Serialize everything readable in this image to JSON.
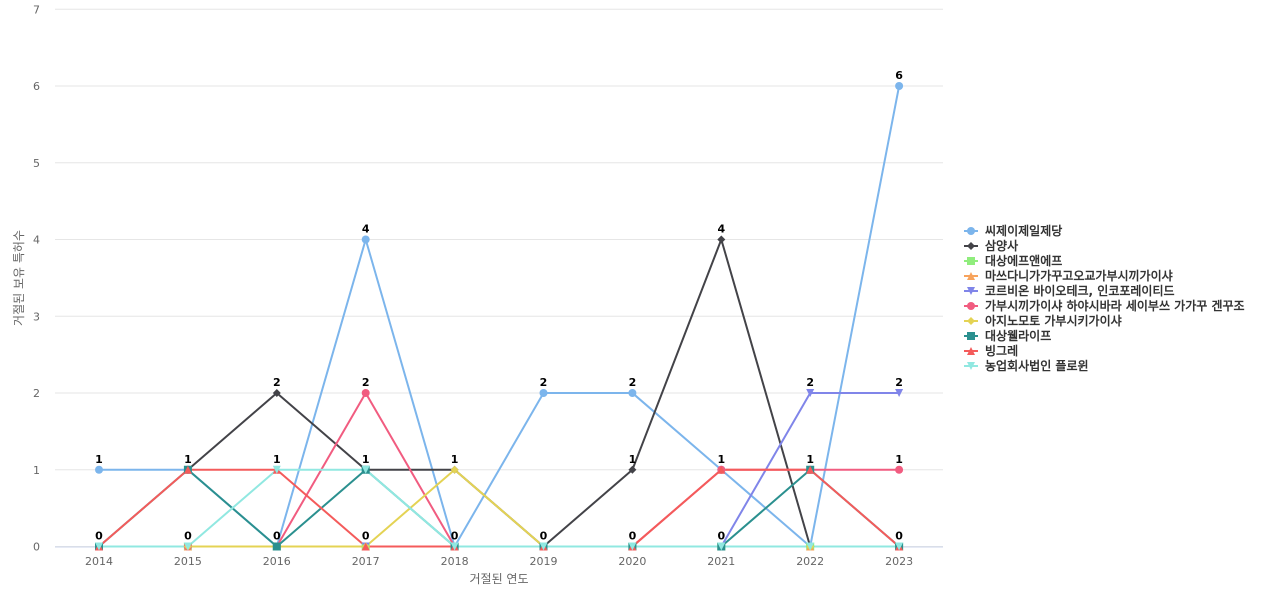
{
  "chart_data": {
    "type": "line",
    "title": "",
    "xlabel": "거절된 연도",
    "ylabel": "거절된 보유 특허수",
    "x": [
      "2014",
      "2015",
      "2016",
      "2017",
      "2018",
      "2019",
      "2020",
      "2021",
      "2022",
      "2023"
    ],
    "ylim": [
      0,
      7
    ],
    "yticks": [
      0,
      1,
      2,
      3,
      4,
      5,
      6,
      7
    ],
    "grid": true,
    "legend_position": "right",
    "series": [
      {
        "name": "씨제이제일제당",
        "color": "#7cb5ec",
        "marker": "circle",
        "values": [
          1,
          1,
          0,
          4,
          0,
          2,
          2,
          1,
          0,
          6
        ]
      },
      {
        "name": "삼양사",
        "color": "#434348",
        "marker": "diamond",
        "values": [
          null,
          1,
          2,
          1,
          1,
          0,
          1,
          4,
          0,
          null
        ]
      },
      {
        "name": "대상에프앤에프",
        "color": "#90ed7d",
        "marker": "square",
        "values": [
          0,
          0,
          0,
          0,
          0,
          0,
          0,
          0,
          0,
          0
        ]
      },
      {
        "name": "마쓰다니가가꾸고오교가부시끼가이샤",
        "color": "#f7a35c",
        "marker": "triangle",
        "values": [
          0,
          0,
          0,
          0,
          0,
          0,
          0,
          0,
          0,
          0
        ]
      },
      {
        "name": "코르비온 바이오테크, 인코포레이티드",
        "color": "#8085e9",
        "marker": "triangle-down",
        "values": [
          0,
          0,
          0,
          0,
          0,
          0,
          0,
          0,
          2,
          2
        ]
      },
      {
        "name": "가부시끼가이샤 하야시바라 세이부쓰 가가꾸 겐꾸조",
        "color": "#f15c80",
        "marker": "circle",
        "values": [
          0,
          0,
          0,
          2,
          0,
          0,
          0,
          1,
          1,
          1
        ]
      },
      {
        "name": "아지노모토 가부시키가이샤",
        "color": "#e4d354",
        "marker": "diamond",
        "values": [
          0,
          0,
          0,
          0,
          1,
          0,
          0,
          0,
          0,
          0
        ]
      },
      {
        "name": "대상웰라이프",
        "color": "#2b908f",
        "marker": "square",
        "values": [
          0,
          1,
          0,
          1,
          0,
          0,
          0,
          0,
          1,
          0
        ]
      },
      {
        "name": "빙그레",
        "color": "#f45b5b",
        "marker": "triangle",
        "values": [
          0,
          1,
          1,
          0,
          0,
          0,
          0,
          1,
          1,
          0
        ]
      },
      {
        "name": "농업회사법인 플로윈",
        "color": "#91e8e1",
        "marker": "triangle-down",
        "values": [
          0,
          0,
          1,
          1,
          0,
          0,
          0,
          0,
          0,
          0
        ]
      }
    ],
    "data_labels": [
      {
        "x": "2014",
        "top": "1",
        "bottom": "0"
      },
      {
        "x": "2015",
        "top": "1",
        "bottom": "0"
      },
      {
        "x": "2016",
        "top": "2",
        "mid": "1",
        "bottom": "0"
      },
      {
        "x": "2017",
        "top": "4",
        "mid2": "2",
        "mid": "1",
        "bottom": "0"
      },
      {
        "x": "2018",
        "mid": "1",
        "bottom": "0"
      },
      {
        "x": "2019",
        "top": "2",
        "bottom": "0"
      },
      {
        "x": "2020",
        "top": "2",
        "mid": "1",
        "bottom": "0"
      },
      {
        "x": "2021",
        "top": "4",
        "mid": "1",
        "bottom": "0"
      },
      {
        "x": "2022",
        "top": "2",
        "mid": "1"
      },
      {
        "x": "2023",
        "top": "6",
        "mid2": "2",
        "mid": "1",
        "bottom": "0"
      }
    ]
  }
}
